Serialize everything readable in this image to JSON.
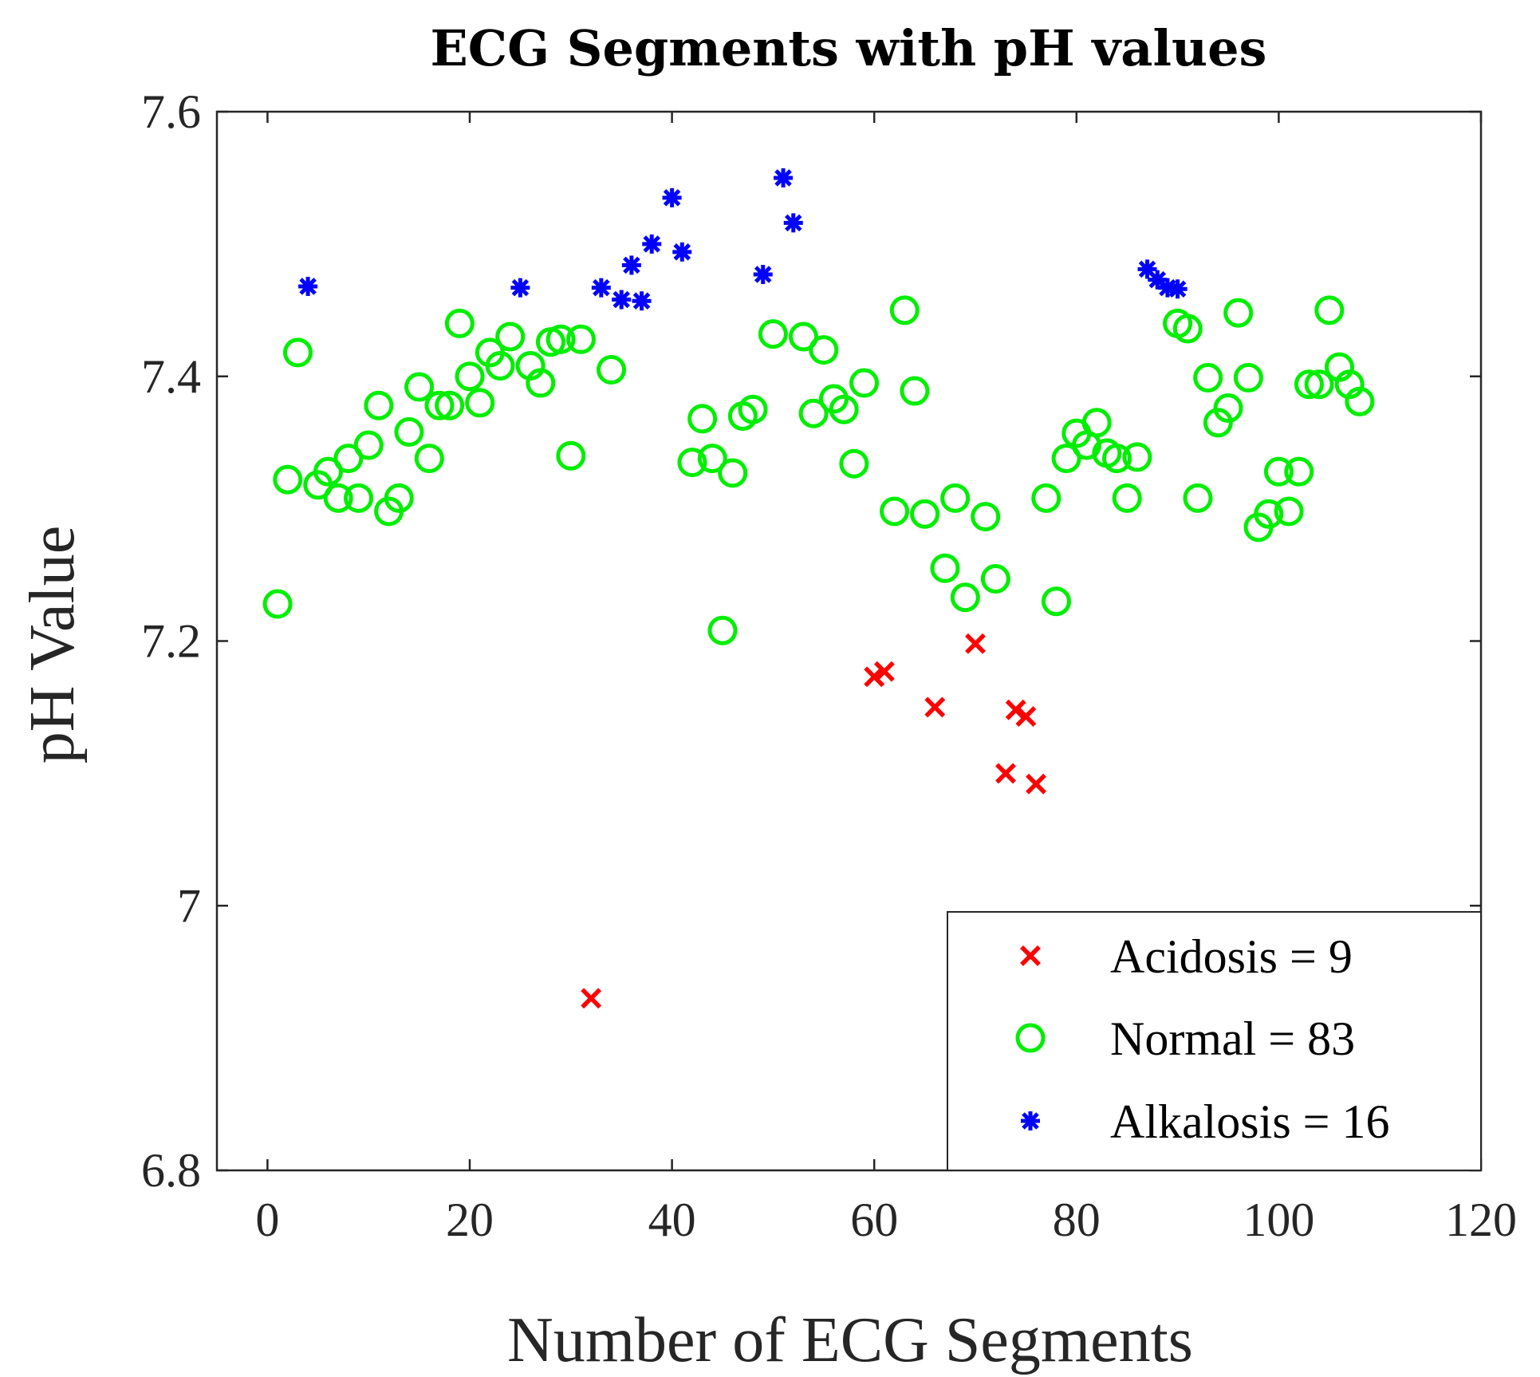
{
  "chart_data": {
    "type": "scatter",
    "title": "ECG Segments with pH values",
    "xlabel": "Number of ECG Segments",
    "ylabel": "pH Value",
    "xlim": [
      -5,
      120
    ],
    "ylim": [
      6.8,
      7.6
    ],
    "xticks": [
      0,
      20,
      40,
      60,
      80,
      100,
      120
    ],
    "xtick_labels": [
      "0",
      "20",
      "40",
      "60",
      "80",
      "100",
      "120"
    ],
    "yticks": [
      6.8,
      7.0,
      7.2,
      7.4,
      7.6
    ],
    "ytick_labels": [
      "6.8",
      "7",
      "7.2",
      "7.4",
      "7.6"
    ],
    "grid": false,
    "legend_position": "bottom-right",
    "series": [
      {
        "name": "Acidosis = 9",
        "marker": "x",
        "color": "#ff0000",
        "points": [
          [
            32,
            6.93
          ],
          [
            60,
            7.173
          ],
          [
            61,
            7.177
          ],
          [
            66,
            7.15
          ],
          [
            70,
            7.198
          ],
          [
            73,
            7.1
          ],
          [
            74,
            7.148
          ],
          [
            75,
            7.143
          ],
          [
            76,
            7.092
          ]
        ]
      },
      {
        "name": "Normal = 83",
        "marker": "circle",
        "color": "#00ee00",
        "points": [
          [
            1,
            7.228
          ],
          [
            2,
            7.322
          ],
          [
            3,
            7.418
          ],
          [
            5,
            7.318
          ],
          [
            6,
            7.328
          ],
          [
            7,
            7.308
          ],
          [
            8,
            7.338
          ],
          [
            9,
            7.308
          ],
          [
            10,
            7.348
          ],
          [
            11,
            7.378
          ],
          [
            12,
            7.298
          ],
          [
            13,
            7.308
          ],
          [
            14,
            7.358
          ],
          [
            15,
            7.392
          ],
          [
            16,
            7.338
          ],
          [
            17,
            7.378
          ],
          [
            18,
            7.378
          ],
          [
            19,
            7.44
          ],
          [
            20,
            7.4
          ],
          [
            21,
            7.38
          ],
          [
            22,
            7.418
          ],
          [
            23,
            7.408
          ],
          [
            24,
            7.43
          ],
          [
            26,
            7.408
          ],
          [
            27,
            7.395
          ],
          [
            28,
            7.426
          ],
          [
            29,
            7.428
          ],
          [
            30,
            7.34
          ],
          [
            31,
            7.428
          ],
          [
            34,
            7.405
          ],
          [
            42,
            7.335
          ],
          [
            43,
            7.368
          ],
          [
            44,
            7.338
          ],
          [
            45,
            7.208
          ],
          [
            46,
            7.327
          ],
          [
            47,
            7.37
          ],
          [
            48,
            7.375
          ],
          [
            50,
            7.432
          ],
          [
            53,
            7.43
          ],
          [
            54,
            7.372
          ],
          [
            55,
            7.42
          ],
          [
            56,
            7.383
          ],
          [
            57,
            7.375
          ],
          [
            58,
            7.334
          ],
          [
            59,
            7.395
          ],
          [
            62,
            7.298
          ],
          [
            63,
            7.45
          ],
          [
            64,
            7.389
          ],
          [
            65,
            7.296
          ],
          [
            67,
            7.255
          ],
          [
            68,
            7.308
          ],
          [
            69,
            7.233
          ],
          [
            71,
            7.294
          ],
          [
            72,
            7.247
          ],
          [
            77,
            7.308
          ],
          [
            78,
            7.23
          ],
          [
            79,
            7.338
          ],
          [
            80,
            7.357
          ],
          [
            81,
            7.348
          ],
          [
            82,
            7.365
          ],
          [
            83,
            7.342
          ],
          [
            84,
            7.338
          ],
          [
            85,
            7.308
          ],
          [
            86,
            7.339
          ],
          [
            90,
            7.44
          ],
          [
            91,
            7.436
          ],
          [
            92,
            7.308
          ],
          [
            93,
            7.399
          ],
          [
            94,
            7.365
          ],
          [
            95,
            7.376
          ],
          [
            96,
            7.448
          ],
          [
            97,
            7.399
          ],
          [
            98,
            7.286
          ],
          [
            99,
            7.296
          ],
          [
            100,
            7.328
          ],
          [
            101,
            7.298
          ],
          [
            102,
            7.328
          ],
          [
            103,
            7.394
          ],
          [
            104,
            7.394
          ],
          [
            105,
            7.45
          ],
          [
            106,
            7.407
          ],
          [
            107,
            7.394
          ],
          [
            108,
            7.381
          ]
        ]
      },
      {
        "name": "Alkalosis = 16",
        "marker": "asterisk",
        "color": "#0000ff",
        "points": [
          [
            4,
            7.468
          ],
          [
            25,
            7.467
          ],
          [
            33,
            7.467
          ],
          [
            35,
            7.458
          ],
          [
            36,
            7.484
          ],
          [
            37,
            7.457
          ],
          [
            38,
            7.5
          ],
          [
            40,
            7.535
          ],
          [
            41,
            7.494
          ],
          [
            49,
            7.477
          ],
          [
            51,
            7.55
          ],
          [
            52,
            7.516
          ],
          [
            87,
            7.481
          ],
          [
            88,
            7.473
          ],
          [
            89,
            7.467
          ],
          [
            90,
            7.466
          ]
        ]
      }
    ]
  }
}
